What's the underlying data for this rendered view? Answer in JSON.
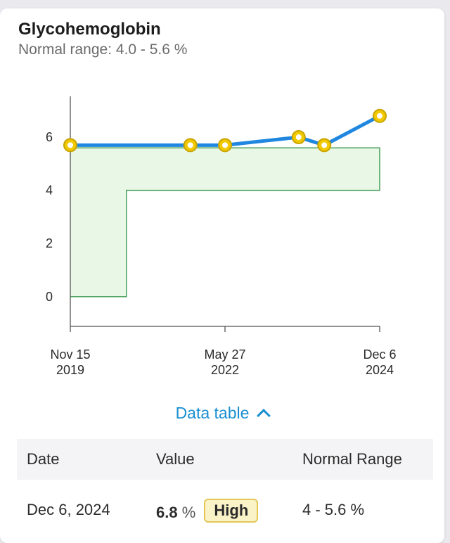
{
  "card": {
    "title": "Glycohemoglobin",
    "subtitle": "Normal range: 4.0 - 5.6 %"
  },
  "chart_data": {
    "type": "line",
    "x_dates": [
      "2019-11-15",
      "2021-11-01",
      "2022-05-27",
      "2023-08-10",
      "2024-01-10",
      "2024-12-06"
    ],
    "values": [
      5.7,
      5.7,
      5.7,
      6.0,
      5.7,
      6.8
    ],
    "yticks": [
      0,
      2,
      4,
      6
    ],
    "ylim": [
      -0.8,
      7.8
    ],
    "xticks": [
      {
        "date": "2019-11-15",
        "line1": "Nov 15",
        "line2": "2019"
      },
      {
        "date": "2022-05-27",
        "line1": "May 27",
        "line2": "2022"
      },
      {
        "date": "2024-12-06",
        "line1": "Dec 6",
        "line2": "2024"
      }
    ],
    "normal_range": [
      {
        "from": "2019-11-15",
        "to": "2020-10-15",
        "low": 0,
        "high": 5.6
      },
      {
        "from": "2020-10-15",
        "to": "2024-12-06",
        "low": 4.0,
        "high": 5.6
      }
    ],
    "colors": {
      "line": "#1f87e0",
      "marker_fill": "#f0c900",
      "marker_stroke": "#c9a400",
      "band_fill": "#e9f8e6",
      "band_stroke": "#3d9a52",
      "axis": "#555555"
    }
  },
  "toggle": {
    "label": "Data table",
    "icon": "chevron-up-icon"
  },
  "table": {
    "headers": {
      "date": "Date",
      "value": "Value",
      "range": "Normal Range"
    },
    "rows": [
      {
        "date": "Dec 6, 2024",
        "value": "6.8",
        "unit": "%",
        "flag": "High",
        "range": "4 - 5.6 %"
      }
    ]
  }
}
